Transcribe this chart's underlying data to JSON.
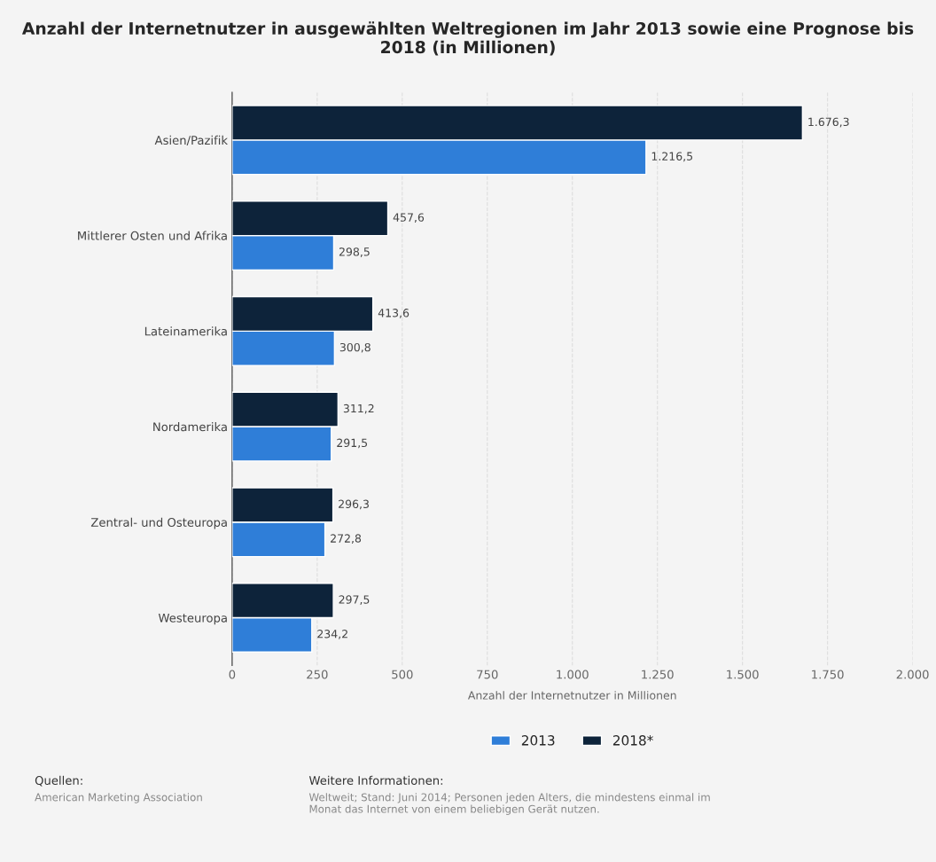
{
  "chart_data": {
    "type": "bar",
    "orientation": "horizontal",
    "title": "Anzahl der Internetnutzer in ausgewählten Weltregionen im Jahr 2013 sowie eine Prognose bis 2018 (in Millionen)",
    "xlabel": "Anzahl der Internetnutzer in Millionen",
    "categories": [
      "Asien/Pazifik",
      "Mittlerer Osten und Afrika",
      "Lateinamerika",
      "Nordamerika",
      "Zentral- und Osteuropa",
      "Westeuropa"
    ],
    "series": [
      {
        "name": "2013",
        "color": "#2f7ed8",
        "values": [
          1216.5,
          298.5,
          300.8,
          291.5,
          272.8,
          234.2
        ],
        "value_labels": [
          "1.216,5",
          "298,5",
          "300,8",
          "291,5",
          "272,8",
          "234,2"
        ]
      },
      {
        "name": "2018*",
        "color": "#0d233a",
        "values": [
          1676.3,
          457.6,
          413.6,
          311.2,
          296.3,
          297.5
        ],
        "value_labels": [
          "1.676,3",
          "457,6",
          "413,6",
          "311,2",
          "296,3",
          "297,5"
        ]
      }
    ],
    "xlim": [
      0,
      2000
    ],
    "xticks": [
      0,
      250,
      500,
      750,
      {
        "value": 1000,
        "label": "1.000"
      },
      {
        "value": 1250,
        "label": "1.250"
      },
      {
        "value": 1500,
        "label": "1.500"
      },
      {
        "value": 1750,
        "label": "1.750"
      },
      {
        "value": 2000,
        "label": "2.000"
      }
    ],
    "grid": "x",
    "legend": "bottom",
    "annotations": [
      "Quellen:",
      "American Marketing Association",
      "Weitere Informationen:",
      "Weltweit; Stand: Juni 2014; Personen jeden Alters, die mindestens einmal im Monat das Internet von einem beliebigen Gerät nutzen."
    ]
  }
}
